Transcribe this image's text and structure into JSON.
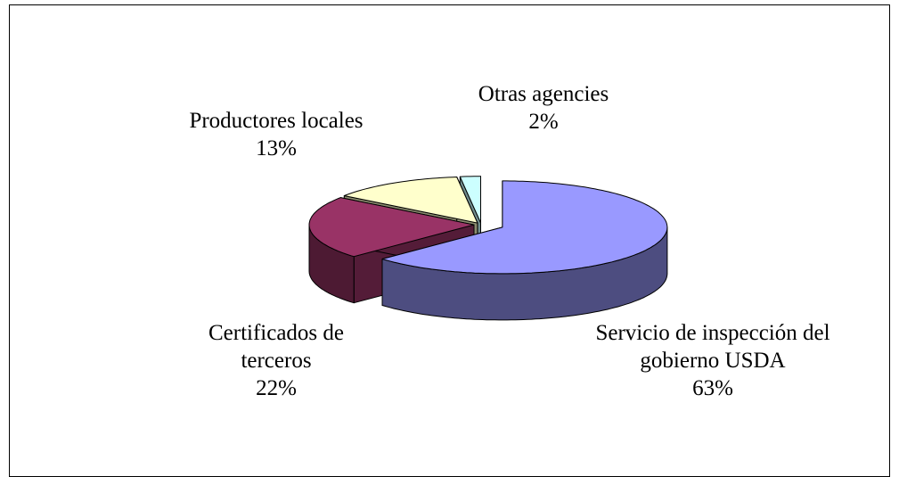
{
  "chart_data": {
    "type": "pie3d",
    "categories": [
      "Servicio de inspección del gobierno USDA",
      "Certificados de terceros",
      "Productores locales",
      "Otras agencies"
    ],
    "values": [
      63,
      22,
      13,
      2
    ],
    "value_labels": [
      "63%",
      "22%",
      "13%",
      "2%"
    ],
    "colors": [
      "#9999ff",
      "#993366",
      "#ffffcc",
      "#ccffff"
    ]
  }
}
